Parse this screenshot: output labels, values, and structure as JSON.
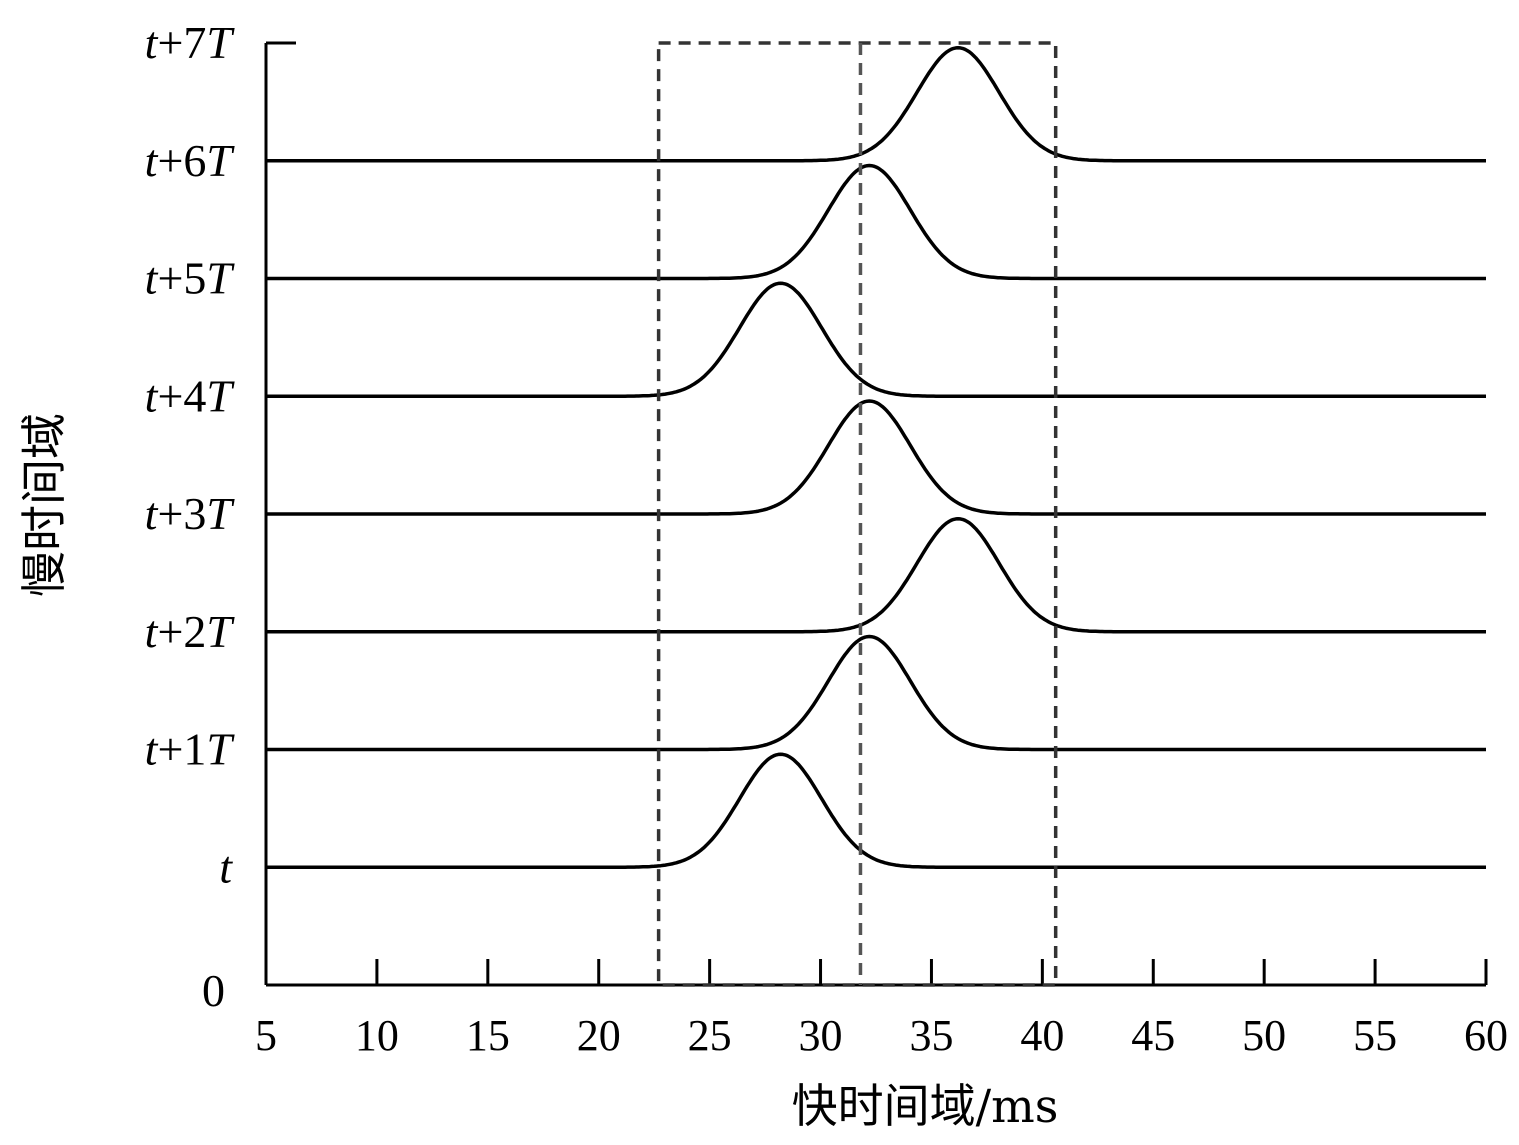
{
  "chart_data": {
    "type": "line",
    "xlabel": "快时间域/ms",
    "ylabel": "慢时间域",
    "xlim": [
      5,
      60
    ],
    "x_ticks": [
      5,
      10,
      15,
      20,
      25,
      30,
      35,
      40,
      45,
      50,
      55,
      60
    ],
    "x_tick_labels": [
      "5",
      "10",
      "15",
      "20",
      "25",
      "30",
      "35",
      "40",
      "45",
      "50",
      "55",
      "60"
    ],
    "y_zero_label": "0",
    "grid": false,
    "legend": "none",
    "line_color": "#000000",
    "box_color": "#333333",
    "series": [
      {
        "label": "t",
        "label_base": "t",
        "label_mult": "",
        "label_unit": "",
        "peak_center": 28.2
      },
      {
        "label": "t+1T",
        "label_base": "t",
        "label_mult": "+1",
        "label_unit": "T",
        "peak_center": 32.2
      },
      {
        "label": "t+2T",
        "label_base": "t",
        "label_mult": "+2",
        "label_unit": "T",
        "peak_center": 36.2
      },
      {
        "label": "t+3T",
        "label_base": "t",
        "label_mult": "+3",
        "label_unit": "T",
        "peak_center": 32.2
      },
      {
        "label": "t+4T",
        "label_base": "t",
        "label_mult": "+4",
        "label_unit": "T",
        "peak_center": 28.2
      },
      {
        "label": "t+5T",
        "label_base": "t",
        "label_mult": "+5",
        "label_unit": "T",
        "peak_center": 32.2
      },
      {
        "label": "t+6T",
        "label_base": "t",
        "label_mult": "+6",
        "label_unit": "T",
        "peak_center": 36.2
      }
    ],
    "top_label": {
      "label": "t+7T",
      "label_base": "t",
      "label_mult": "+7",
      "label_unit": "T"
    },
    "dashed_box": {
      "x_start": 22.7,
      "x_end": 40.6
    },
    "dashed_center_line": {
      "x": 31.8
    }
  }
}
